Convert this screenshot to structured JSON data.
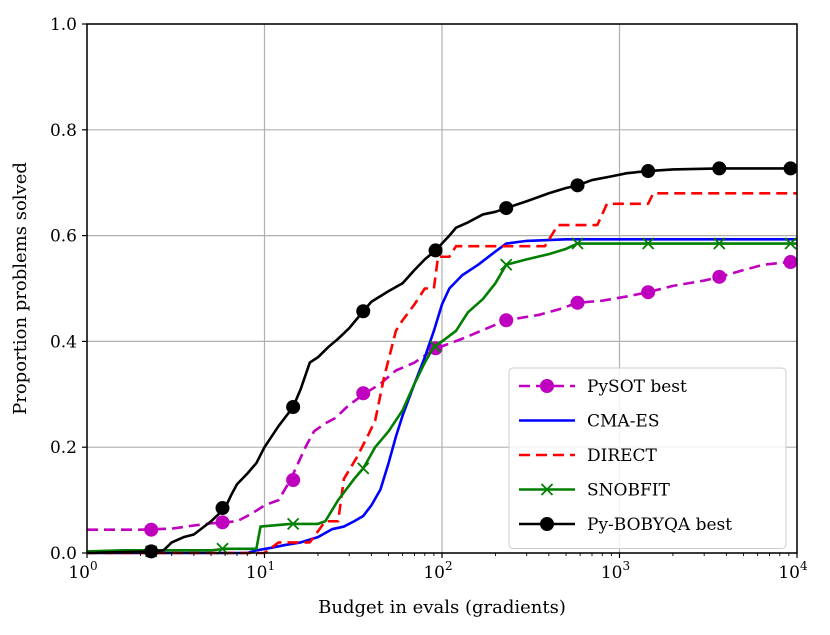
{
  "chart_data": {
    "type": "line",
    "xscale": "log",
    "xlabel": "Budget in evals (gradients)",
    "ylabel": "Proportion problems solved",
    "xlim": [
      1,
      10000
    ],
    "ylim": [
      0.0,
      1.0
    ],
    "grid": true,
    "legend_position": "lower-right",
    "x_ticks": [
      {
        "value": 1,
        "base": "10",
        "exp": "0"
      },
      {
        "value": 10,
        "base": "10",
        "exp": "1"
      },
      {
        "value": 100,
        "base": "10",
        "exp": "2"
      },
      {
        "value": 1000,
        "base": "10",
        "exp": "3"
      },
      {
        "value": 10000,
        "base": "10",
        "exp": "4"
      }
    ],
    "y_ticks": [
      {
        "value": 0.0,
        "label": "0.0"
      },
      {
        "value": 0.2,
        "label": "0.2"
      },
      {
        "value": 0.4,
        "label": "0.4"
      },
      {
        "value": 0.6,
        "label": "0.6"
      },
      {
        "value": 0.8,
        "label": "0.8"
      },
      {
        "value": 1.0,
        "label": "1.0"
      }
    ],
    "series": [
      {
        "name": "PySOT best",
        "color": "#bf00bf",
        "dash": "dashed",
        "marker": "circle",
        "points": [
          [
            1,
            0.044
          ],
          [
            2,
            0.044
          ],
          [
            3,
            0.046
          ],
          [
            4,
            0.052
          ],
          [
            5,
            0.056
          ],
          [
            6,
            0.058
          ],
          [
            7,
            0.06
          ],
          [
            8,
            0.07
          ],
          [
            9,
            0.08
          ],
          [
            10,
            0.09
          ],
          [
            12,
            0.1
          ],
          [
            14,
            0.138
          ],
          [
            15,
            0.16
          ],
          [
            17,
            0.2
          ],
          [
            19,
            0.23
          ],
          [
            22,
            0.245
          ],
          [
            25,
            0.255
          ],
          [
            30,
            0.28
          ],
          [
            37,
            0.302
          ],
          [
            45,
            0.32
          ],
          [
            55,
            0.345
          ],
          [
            70,
            0.36
          ],
          [
            90,
            0.385
          ],
          [
            130,
            0.405
          ],
          [
            180,
            0.425
          ],
          [
            230,
            0.44
          ],
          [
            350,
            0.45
          ],
          [
            450,
            0.46
          ],
          [
            580,
            0.473
          ],
          [
            800,
            0.477
          ],
          [
            1100,
            0.485
          ],
          [
            1450,
            0.493
          ],
          [
            2000,
            0.505
          ],
          [
            3000,
            0.515
          ],
          [
            3700,
            0.522
          ],
          [
            5000,
            0.535
          ],
          [
            6500,
            0.545
          ],
          [
            9000,
            0.55
          ],
          [
            10000,
            0.55
          ]
        ],
        "marker_points": [
          [
            2.3,
            0.044
          ],
          [
            5.8,
            0.058
          ],
          [
            14.5,
            0.138
          ],
          [
            36,
            0.302
          ],
          [
            92,
            0.387
          ],
          [
            230,
            0.44
          ],
          [
            580,
            0.473
          ],
          [
            1450,
            0.493
          ],
          [
            3650,
            0.522
          ],
          [
            9200,
            0.55
          ]
        ]
      },
      {
        "name": "CMA-ES",
        "color": "#0000ff",
        "dash": "solid",
        "marker": "none",
        "points": [
          [
            1,
            0.0
          ],
          [
            8,
            0.0
          ],
          [
            9,
            0.005
          ],
          [
            11,
            0.01
          ],
          [
            13,
            0.015
          ],
          [
            16,
            0.02
          ],
          [
            20,
            0.03
          ],
          [
            24,
            0.045
          ],
          [
            28,
            0.05
          ],
          [
            32,
            0.06
          ],
          [
            36,
            0.07
          ],
          [
            40,
            0.09
          ],
          [
            45,
            0.12
          ],
          [
            50,
            0.17
          ],
          [
            55,
            0.22
          ],
          [
            60,
            0.26
          ],
          [
            70,
            0.32
          ],
          [
            80,
            0.37
          ],
          [
            90,
            0.42
          ],
          [
            100,
            0.47
          ],
          [
            110,
            0.5
          ],
          [
            130,
            0.525
          ],
          [
            160,
            0.545
          ],
          [
            200,
            0.57
          ],
          [
            230,
            0.585
          ],
          [
            300,
            0.59
          ],
          [
            500,
            0.593
          ],
          [
            10000,
            0.593
          ]
        ],
        "marker_points": []
      },
      {
        "name": "DIRECT",
        "color": "#ff0000",
        "dash": "dashed",
        "marker": "none",
        "points": [
          [
            1,
            0.0
          ],
          [
            10,
            0.0
          ],
          [
            12,
            0.02
          ],
          [
            18,
            0.02
          ],
          [
            22,
            0.06
          ],
          [
            26,
            0.06
          ],
          [
            28,
            0.14
          ],
          [
            33,
            0.18
          ],
          [
            38,
            0.22
          ],
          [
            42,
            0.25
          ],
          [
            47,
            0.33
          ],
          [
            55,
            0.42
          ],
          [
            60,
            0.44
          ],
          [
            70,
            0.47
          ],
          [
            80,
            0.5
          ],
          [
            90,
            0.5
          ],
          [
            95,
            0.56
          ],
          [
            110,
            0.56
          ],
          [
            120,
            0.58
          ],
          [
            380,
            0.58
          ],
          [
            450,
            0.62
          ],
          [
            750,
            0.62
          ],
          [
            850,
            0.66
          ],
          [
            1450,
            0.66
          ],
          [
            1550,
            0.68
          ],
          [
            10000,
            0.68
          ]
        ],
        "marker_points": []
      },
      {
        "name": "SNOBFIT",
        "color": "#007f00",
        "dash": "solid",
        "marker": "x",
        "points": [
          [
            1,
            0.003
          ],
          [
            1.6,
            0.005
          ],
          [
            5,
            0.005
          ],
          [
            6,
            0.008
          ],
          [
            9,
            0.008
          ],
          [
            9.5,
            0.05
          ],
          [
            14,
            0.055
          ],
          [
            20,
            0.055
          ],
          [
            22,
            0.06
          ],
          [
            26,
            0.1
          ],
          [
            32,
            0.14
          ],
          [
            36,
            0.16
          ],
          [
            42,
            0.2
          ],
          [
            50,
            0.23
          ],
          [
            60,
            0.27
          ],
          [
            70,
            0.32
          ],
          [
            80,
            0.36
          ],
          [
            90,
            0.39
          ],
          [
            100,
            0.4
          ],
          [
            120,
            0.42
          ],
          [
            140,
            0.455
          ],
          [
            170,
            0.48
          ],
          [
            200,
            0.51
          ],
          [
            230,
            0.545
          ],
          [
            300,
            0.555
          ],
          [
            400,
            0.565
          ],
          [
            500,
            0.575
          ],
          [
            580,
            0.585
          ],
          [
            700,
            0.585
          ],
          [
            10000,
            0.585
          ]
        ],
        "marker_points": [
          [
            2.3,
            0.003
          ],
          [
            5.8,
            0.008
          ],
          [
            14.5,
            0.055
          ],
          [
            36,
            0.16
          ],
          [
            92,
            0.39
          ],
          [
            230,
            0.545
          ],
          [
            580,
            0.585
          ],
          [
            1450,
            0.585
          ],
          [
            3650,
            0.585
          ],
          [
            9200,
            0.585
          ]
        ]
      },
      {
        "name": "Py-BOBYQA best",
        "color": "#000000",
        "dash": "solid",
        "marker": "circle",
        "points": [
          [
            1,
            0.0
          ],
          [
            2.3,
            0.003
          ],
          [
            2.7,
            0.005
          ],
          [
            3,
            0.02
          ],
          [
            3.5,
            0.03
          ],
          [
            4,
            0.035
          ],
          [
            5,
            0.06
          ],
          [
            6,
            0.085
          ],
          [
            6.5,
            0.11
          ],
          [
            7,
            0.13
          ],
          [
            8,
            0.15
          ],
          [
            9,
            0.17
          ],
          [
            10,
            0.2
          ],
          [
            12,
            0.24
          ],
          [
            14.5,
            0.276
          ],
          [
            16,
            0.31
          ],
          [
            18,
            0.36
          ],
          [
            20,
            0.37
          ],
          [
            23,
            0.39
          ],
          [
            26,
            0.405
          ],
          [
            30,
            0.425
          ],
          [
            36,
            0.457
          ],
          [
            40,
            0.475
          ],
          [
            50,
            0.495
          ],
          [
            60,
            0.51
          ],
          [
            70,
            0.535
          ],
          [
            80,
            0.555
          ],
          [
            92,
            0.572
          ],
          [
            110,
            0.6
          ],
          [
            120,
            0.615
          ],
          [
            140,
            0.625
          ],
          [
            170,
            0.64
          ],
          [
            200,
            0.645
          ],
          [
            230,
            0.652
          ],
          [
            300,
            0.665
          ],
          [
            400,
            0.68
          ],
          [
            500,
            0.69
          ],
          [
            580,
            0.695
          ],
          [
            700,
            0.705
          ],
          [
            900,
            0.712
          ],
          [
            1100,
            0.718
          ],
          [
            1450,
            0.722
          ],
          [
            2000,
            0.725
          ],
          [
            3650,
            0.727
          ],
          [
            10000,
            0.727
          ]
        ],
        "marker_points": [
          [
            2.3,
            0.003
          ],
          [
            5.8,
            0.085
          ],
          [
            14.5,
            0.276
          ],
          [
            36,
            0.457
          ],
          [
            92,
            0.572
          ],
          [
            230,
            0.652
          ],
          [
            580,
            0.695
          ],
          [
            1450,
            0.722
          ],
          [
            3650,
            0.727
          ],
          [
            9200,
            0.727
          ]
        ]
      }
    ]
  }
}
